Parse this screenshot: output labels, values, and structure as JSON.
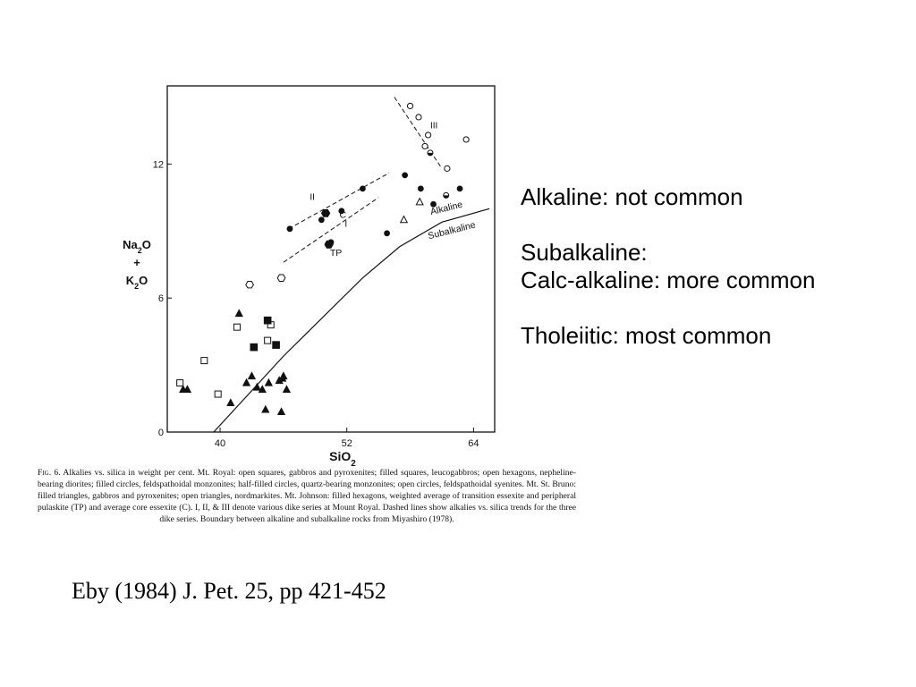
{
  "chart_data": {
    "type": "scatter",
    "xlabel": "SiO2",
    "ylabel": "Na2O + K2O",
    "xlim": [
      35,
      66
    ],
    "ylim": [
      0,
      15.5
    ],
    "x_ticks": [
      "40",
      "52",
      "64"
    ],
    "y_ticks": [
      "0",
      "6",
      "12"
    ],
    "grid": false,
    "series": [
      {
        "marker": "open-square",
        "points": [
          [
            36.2,
            2.2
          ],
          [
            38.5,
            3.2
          ],
          [
            39.8,
            1.7
          ],
          [
            41.6,
            4.7
          ],
          [
            44.8,
            4.8
          ],
          [
            44.5,
            4.1
          ]
        ]
      },
      {
        "marker": "filled-square",
        "points": [
          [
            43.2,
            3.8
          ],
          [
            44.5,
            5.0
          ],
          [
            45.3,
            3.9
          ]
        ]
      },
      {
        "marker": "open-hexagon",
        "points": [
          [
            42.8,
            6.6
          ],
          [
            45.8,
            6.9
          ]
        ]
      },
      {
        "marker": "filled-circle",
        "points": [
          [
            46.6,
            9.1
          ],
          [
            49.6,
            9.5
          ],
          [
            50.5,
            8.5
          ],
          [
            51.5,
            9.9
          ],
          [
            53.5,
            10.9
          ],
          [
            55.8,
            8.9
          ],
          [
            57.5,
            11.5
          ],
          [
            59.0,
            10.9
          ],
          [
            60.2,
            10.2
          ],
          [
            62.7,
            10.9
          ]
        ]
      },
      {
        "marker": "half-filled-circle",
        "points": [
          [
            59.9,
            12.5
          ],
          [
            61.4,
            10.6
          ]
        ]
      },
      {
        "marker": "open-circle",
        "points": [
          [
            58.0,
            14.6
          ],
          [
            58.8,
            14.1
          ],
          [
            59.4,
            12.8
          ],
          [
            59.7,
            13.3
          ],
          [
            61.5,
            11.8
          ],
          [
            63.3,
            13.1
          ]
        ]
      },
      {
        "marker": "filled-triangle",
        "points": [
          [
            36.5,
            1.9
          ],
          [
            36.9,
            1.9
          ],
          [
            41.0,
            1.3
          ],
          [
            41.8,
            5.3
          ],
          [
            42.5,
            2.2
          ],
          [
            43.0,
            2.5
          ],
          [
            43.5,
            2.0
          ],
          [
            44.0,
            1.9
          ],
          [
            44.3,
            1.0
          ],
          [
            44.6,
            2.2
          ],
          [
            45.6,
            2.3
          ],
          [
            46.0,
            2.5
          ],
          [
            45.9,
            2.4
          ],
          [
            46.3,
            1.9
          ],
          [
            45.8,
            0.9
          ]
        ]
      },
      {
        "marker": "open-triangle",
        "points": [
          [
            58.9,
            10.3
          ],
          [
            57.4,
            9.5
          ]
        ]
      },
      {
        "marker": "filled-hexagon",
        "points": [
          [
            50.3,
            8.4
          ],
          [
            50.0,
            9.8
          ]
        ]
      }
    ],
    "trend_lines": [
      {
        "label": "II",
        "points": [
          [
            46.5,
            9.1
          ],
          [
            56.0,
            11.6
          ]
        ]
      },
      {
        "label": "I",
        "points": [
          [
            46.0,
            7.6
          ],
          [
            55.0,
            10.5
          ]
        ]
      },
      {
        "label": "III",
        "points": [
          [
            56.5,
            15.0
          ],
          [
            61.0,
            11.8
          ]
        ]
      }
    ],
    "point_labels": [
      {
        "text": "C",
        "x": 51.3,
        "y": 9.6
      },
      {
        "text": "TP",
        "x": 50.4,
        "y": 7.9
      }
    ],
    "boundary": {
      "above_label": "Alkaline",
      "below_label": "Subalkaline",
      "points": [
        [
          39.4,
          0.0
        ],
        [
          46.0,
          3.4
        ],
        [
          53.5,
          6.9
        ],
        [
          57.0,
          8.3
        ],
        [
          61.0,
          9.4
        ],
        [
          65.5,
          10.0
        ]
      ]
    }
  },
  "caption": {
    "figure_label": "Fig. 6.",
    "text": "Alkalies vs. silica in weight per cent. Mt. Royal: open squares, gabbros and pyroxenites; filled squares, leucogabbros; open hexagons, nepheline-bearing diorites; filled circles, feldspathoidal monzonites; half-filled circles, quartz-bearing monzonites; open circles, feldspathoidal syenites. Mt. St. Bruno: filled triangles, gabbros and pyroxenites; open triangles, nordmarkites. Mt. Johnson: filled hexagons, weighted average of transition essexite and peripheral pulaskite (TP) and average core essexite (C). I, II, & III denote various dike series at Mount Royal. Dashed lines show alkalies vs. silica trends for the three dike series. Boundary between alkaline and subalkaline rocks from Miyashiro (1978)."
  },
  "notes": {
    "alkaline": "Alkaline: not common",
    "subalkaline": "Subalkaline:",
    "calc_alkaline": "Calc-alkaline: more common",
    "tholeiitic": "Tholeiitic: most common"
  },
  "citation": "Eby (1984) J. Pet. 25, pp 421-452"
}
